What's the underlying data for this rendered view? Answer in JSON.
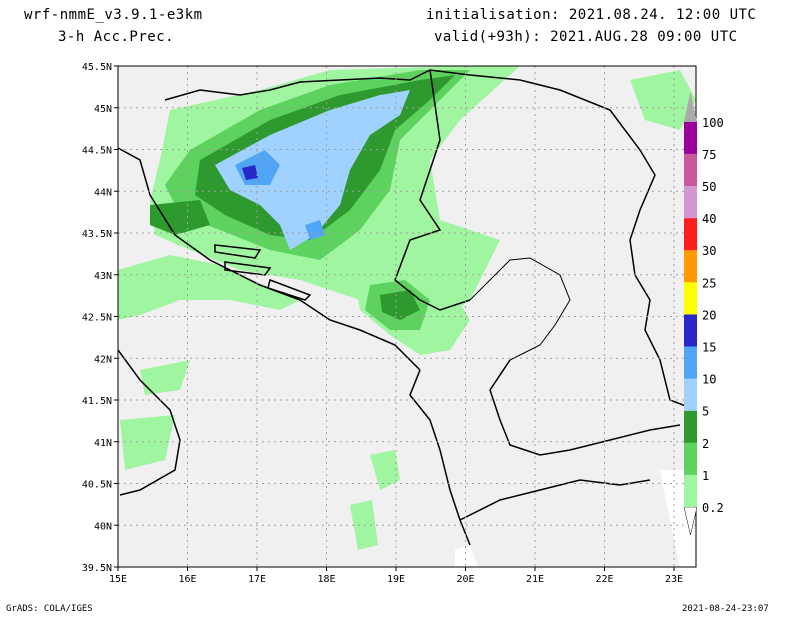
{
  "header": {
    "model": "wrf-nmmE_v3.9.1-e3km",
    "field": "3-h Acc.Prec.",
    "init": "initialisation: 2021.08.24. 12:00 UTC",
    "valid": "valid(+93h): 2021.AUG.28 09:00 UTC"
  },
  "footer": {
    "credit": "GrADS: COLA/IGES",
    "timestamp": "2021-08-24-23:07"
  },
  "map": {
    "lat_labels": [
      "45.5N",
      "45N",
      "44.5N",
      "44N",
      "43.5N",
      "43N",
      "42.5N",
      "42N",
      "41.5N",
      "41N",
      "40.5N",
      "40N",
      "39.5N"
    ],
    "lon_labels": [
      "15E",
      "16E",
      "17E",
      "18E",
      "19E",
      "20E",
      "21E",
      "22E",
      "23E"
    ],
    "land_color": "#f0f0f0"
  },
  "legend": {
    "levels": [
      "0.2",
      "1",
      "2",
      "5",
      "10",
      "15",
      "20",
      "25",
      "30",
      "40",
      "50",
      "75",
      "100"
    ],
    "colors": [
      "#a0f5a0",
      "#5ed25e",
      "#2e992e",
      "#a0d2ff",
      "#50a5f5",
      "#2828c8",
      "#ffff00",
      "#ff9b00",
      "#ff1e1e",
      "#d296d2",
      "#c85a9b",
      "#9b009b",
      "#aaaaaa"
    ]
  }
}
